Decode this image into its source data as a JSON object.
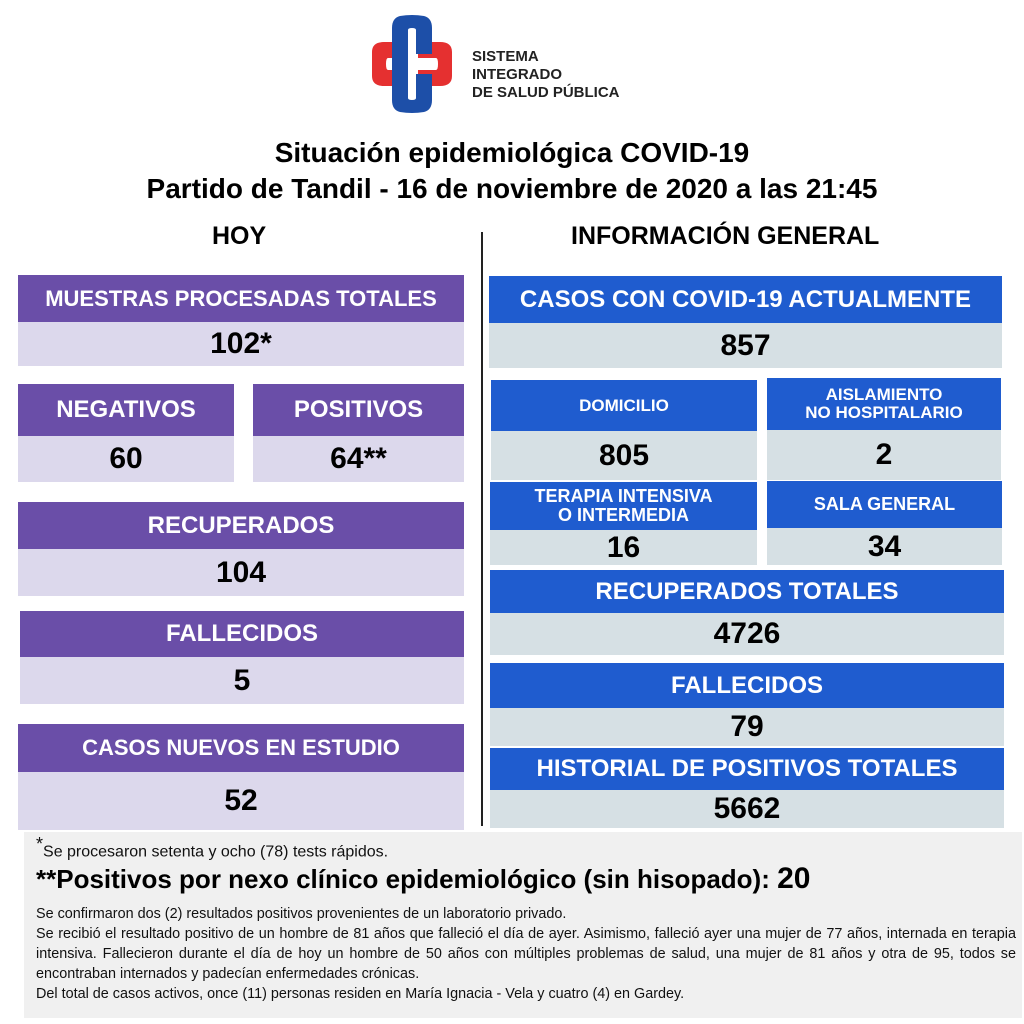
{
  "logo": {
    "line1": "SISTEMA INTEGRADO",
    "line2": "DE SALUD PÚBLICA",
    "colors": {
      "blue": "#1d4fa8",
      "red": "#e53030"
    }
  },
  "title": {
    "line1": "Situación epidemiológica COVID-19",
    "line2": "Partido de Tandil - 16 de noviembre de 2020 a las 21:45"
  },
  "hoy": {
    "heading": "HOY",
    "muestras": {
      "label": "MUESTRAS PROCESADAS TOTALES",
      "value": "102*"
    },
    "negativos": {
      "label": "NEGATIVOS",
      "value": "60"
    },
    "positivos": {
      "label": "POSITIVOS",
      "value": "64**"
    },
    "recuperados": {
      "label": "RECUPERADOS",
      "value": "104"
    },
    "fallecidos": {
      "label": "FALLECIDOS",
      "value": "5"
    },
    "casos_nuevos": {
      "label": "CASOS NUEVOS EN ESTUDIO",
      "value": "52"
    }
  },
  "general": {
    "heading": "INFORMACIÓN GENERAL",
    "casos_actuales": {
      "label": "CASOS CON COVID-19 ACTUALMENTE",
      "value": "857"
    },
    "domicilio": {
      "label": "DOMICILIO",
      "value": "805"
    },
    "aislamiento": {
      "label1": "AISLAMIENTO",
      "label2": "NO HOSPITALARIO",
      "value": "2"
    },
    "terapia": {
      "label1": "TERAPIA INTENSIVA",
      "label2": "O INTERMEDIA",
      "value": "16"
    },
    "sala": {
      "label": "SALA GENERAL",
      "value": "34"
    },
    "recuperados": {
      "label": "RECUPERADOS TOTALES",
      "value": "4726"
    },
    "fallecidos": {
      "label": "FALLECIDOS",
      "value": "79"
    },
    "historial": {
      "label": "HISTORIAL DE POSITIVOS TOTALES",
      "value": "5662"
    }
  },
  "footer": {
    "note1_star": "*",
    "note1": "Se procesaron setenta y ocho (78) tests rápidos.",
    "note2": "**Positivos por nexo clínico epidemiológico (sin hisopado): ",
    "note2_value": "20",
    "paragraphs": [
      "Se confirmaron dos (2) resultados positivos provenientes de un laboratorio privado.",
      "Se recibió el resultado positivo de un hombre de 81 años que falleció el día de ayer. Asimismo, falleció ayer una mujer de 77 años, internada en terapia intensiva. Fallecieron durante el día de hoy un hombre de 50 años con múltiples problemas de salud, una mujer de 81 años y otra de 95, todos se encontraban internados y padecían enfermedades crónicas.",
      "Del total de casos activos, once (11) personas residen en María Ignacia - Vela y cuatro  (4) en Gardey."
    ]
  }
}
